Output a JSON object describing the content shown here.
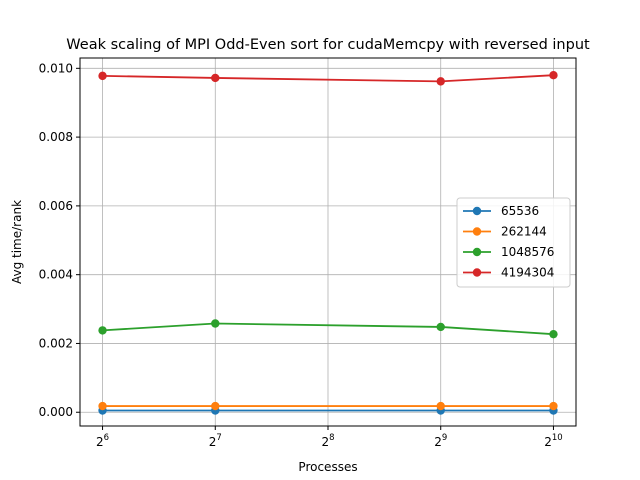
{
  "chart_data": {
    "type": "line",
    "title": "Weak scaling of MPI Odd-Even sort for cudaMemcpy with reversed input",
    "xlabel": "Processes",
    "ylabel": "Avg time/rank",
    "x_scale": "log2",
    "x": [
      64,
      128,
      512,
      1024
    ],
    "x_ticks": [
      {
        "base": "2",
        "exp": "6"
      },
      {
        "base": "2",
        "exp": "7"
      },
      {
        "base": "2",
        "exp": "8"
      },
      {
        "base": "2",
        "exp": "9"
      },
      {
        "base": "2",
        "exp": "10"
      }
    ],
    "y_ticks": [
      "0.000",
      "0.002",
      "0.004",
      "0.006",
      "0.008",
      "0.010"
    ],
    "ylim": [
      -0.0004,
      0.0103
    ],
    "grid": true,
    "legend_position": "center-right",
    "series": [
      {
        "name": "65536",
        "color": "#1f77b4",
        "values": [
          5e-05,
          5e-05,
          5e-05,
          5e-05
        ]
      },
      {
        "name": "262144",
        "color": "#ff7f0e",
        "values": [
          0.00018,
          0.00018,
          0.00018,
          0.00018
        ]
      },
      {
        "name": "1048576",
        "color": "#2ca02c",
        "values": [
          0.00238,
          0.00258,
          0.00248,
          0.00227
        ]
      },
      {
        "name": "4194304",
        "color": "#d62728",
        "values": [
          0.00978,
          0.00972,
          0.00962,
          0.0098
        ]
      }
    ]
  }
}
